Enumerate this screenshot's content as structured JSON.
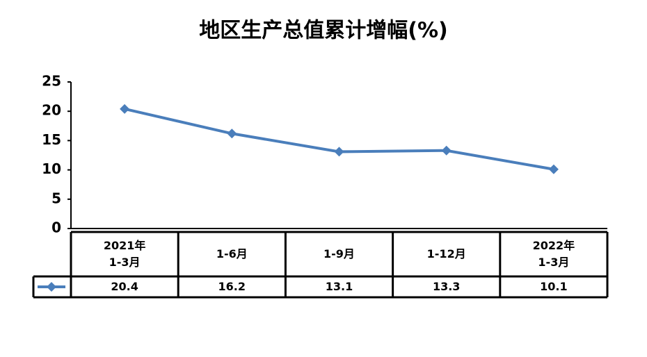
{
  "chart_data": {
    "type": "line",
    "title": "地区生产总值累计增幅(%)",
    "categories": [
      "2021年\n1-3月",
      "1-6月",
      "1-9月",
      "1-12月",
      "2022年\n1-3月"
    ],
    "series": [
      {
        "color": "#4a7ebb",
        "values": [
          20.4,
          16.2,
          13.1,
          13.3,
          10.1
        ]
      }
    ],
    "ylim": [
      0,
      25
    ],
    "yticks": [
      0,
      5,
      10,
      15,
      20,
      25
    ],
    "grid": false,
    "data_table": true
  }
}
